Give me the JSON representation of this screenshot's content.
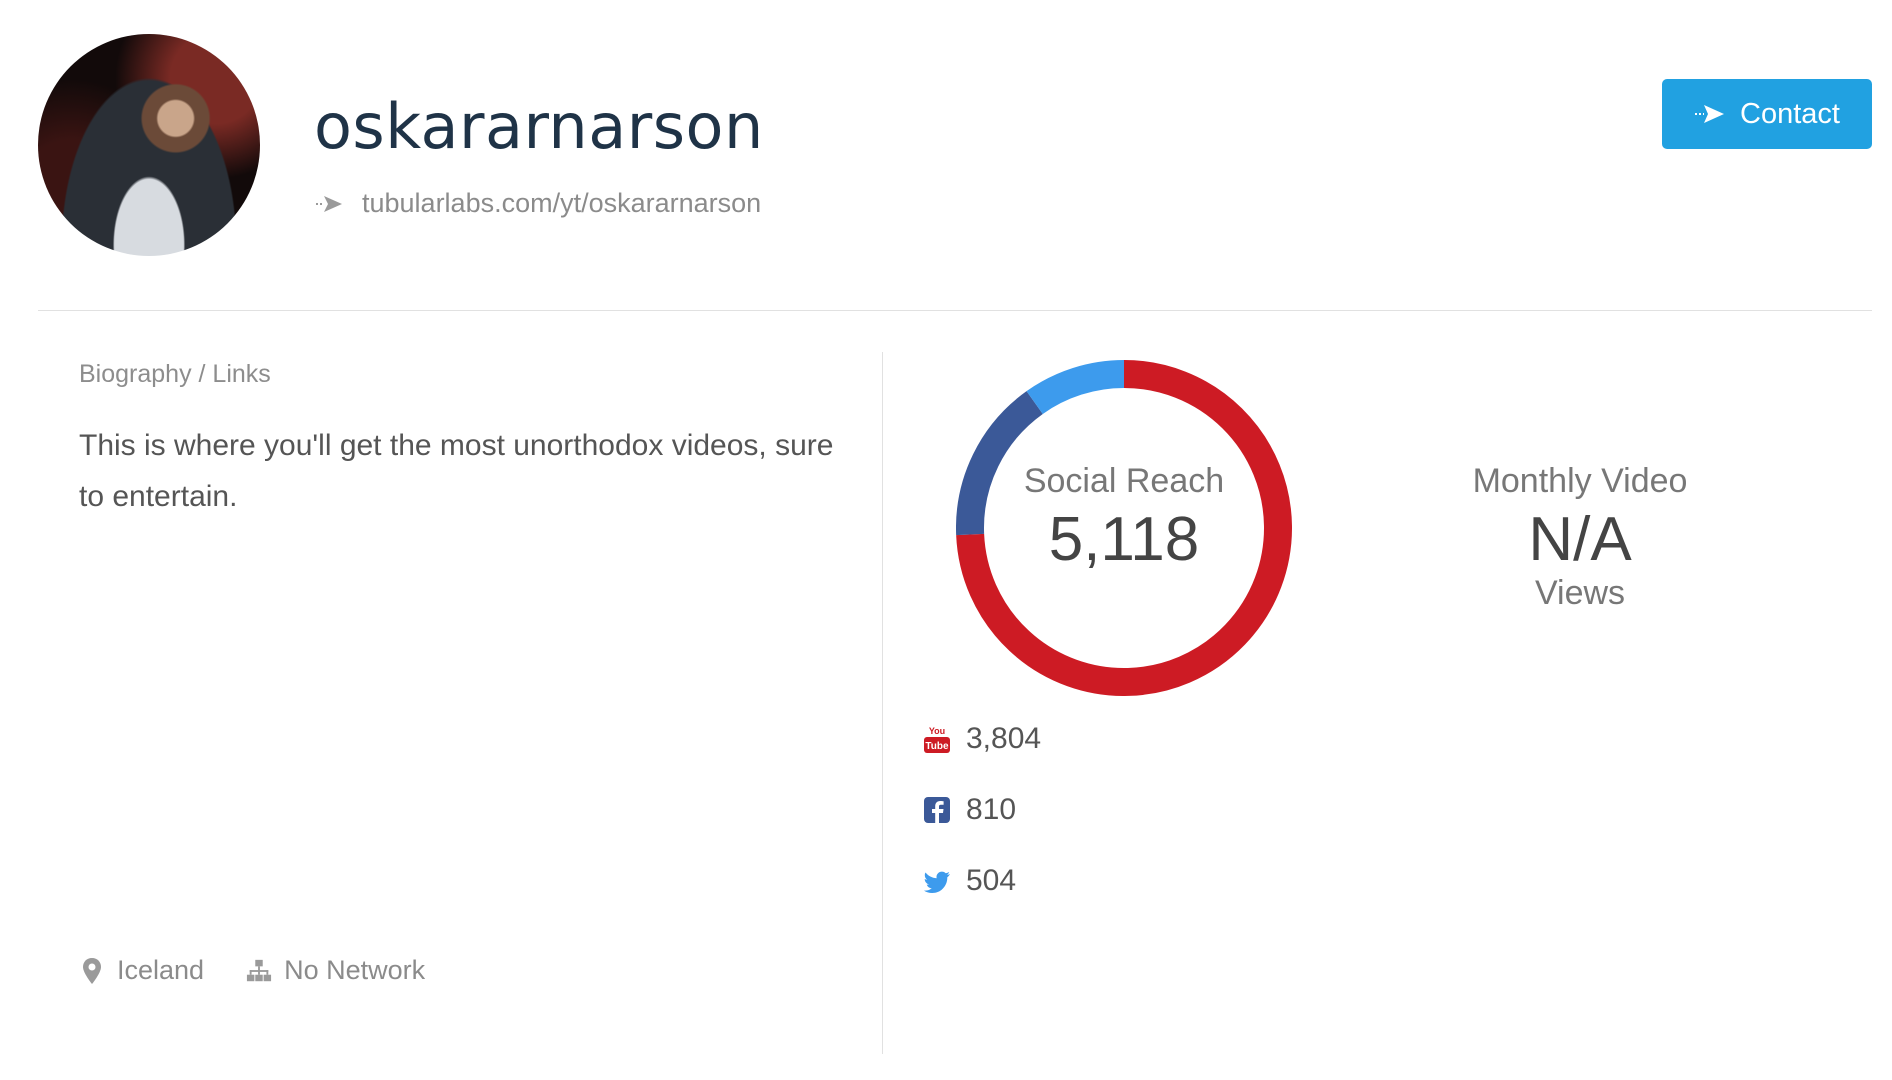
{
  "profile": {
    "handle": "oskararnarson",
    "url": "tubularlabs.com/yt/oskararnarson"
  },
  "contact": {
    "label": "Contact"
  },
  "biography": {
    "title": "Biography / Links",
    "text": "This is where you'll get the most unorthodox videos, sure to entertain."
  },
  "meta": {
    "location": "Iceland",
    "network": "No Network"
  },
  "social_reach": {
    "label": "Social Reach",
    "value": "5,118",
    "segments": [
      {
        "platform": "YouTube",
        "value": 3804,
        "color": "#cd1b24"
      },
      {
        "platform": "Facebook",
        "value": 810,
        "color": "#3b5998"
      },
      {
        "platform": "Twitter",
        "value": 504,
        "color": "#3d9bed"
      }
    ]
  },
  "monthly_video": {
    "label": "Monthly Video",
    "value": "N/A",
    "unit": "Views"
  },
  "socials": [
    {
      "icon": "youtube-icon",
      "value": "3,804"
    },
    {
      "icon": "facebook-icon",
      "value": "810"
    },
    {
      "icon": "twitter-icon",
      "value": "504"
    }
  ]
}
